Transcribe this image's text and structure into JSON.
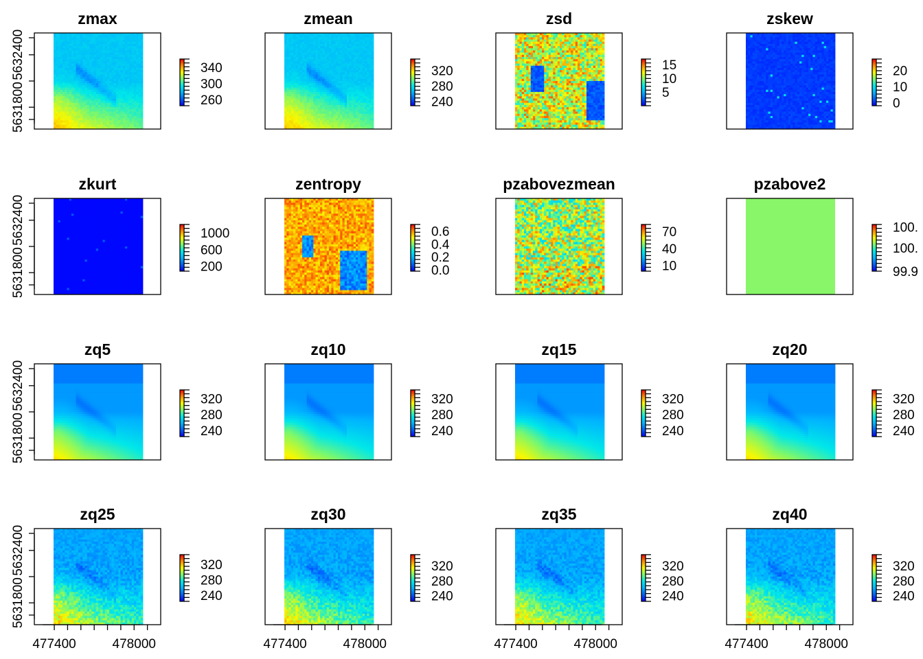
{
  "chart_data": [
    {
      "type": "heatmap",
      "title": "zmax",
      "legend_ticks": [
        "260",
        "300",
        "340"
      ],
      "legend_range": [
        245,
        360
      ],
      "pattern": "terrain",
      "y_axis_ticks": [
        "5631800",
        "5632400"
      ],
      "x_axis_ticks": [],
      "xlim": [
        477250,
        478200
      ],
      "ylim": [
        5631550,
        5632650
      ]
    },
    {
      "type": "heatmap",
      "title": "zmean",
      "legend_ticks": [
        "240",
        "280",
        "320"
      ],
      "legend_range": [
        228,
        350
      ],
      "pattern": "terrain",
      "y_axis_ticks": [],
      "x_axis_ticks": [],
      "xlim": [
        477250,
        478200
      ],
      "ylim": [
        5631550,
        5632650
      ]
    },
    {
      "type": "heatmap",
      "title": "zsd",
      "legend_ticks": [
        "5",
        "10",
        "15"
      ],
      "legend_range": [
        0,
        17
      ],
      "pattern": "zsd",
      "y_axis_ticks": [],
      "x_axis_ticks": [],
      "xlim": [
        477250,
        478200
      ],
      "ylim": [
        5631550,
        5632650
      ]
    },
    {
      "type": "heatmap",
      "title": "zskew",
      "legend_ticks": [
        "0",
        "10",
        "20"
      ],
      "legend_range": [
        -2,
        27
      ],
      "pattern": "skew",
      "y_axis_ticks": [],
      "x_axis_ticks": [],
      "xlim": [
        477250,
        478200
      ],
      "ylim": [
        5631550,
        5632650
      ]
    },
    {
      "type": "heatmap",
      "title": "zkurt",
      "legend_ticks": [
        "200",
        "600",
        "1000"
      ],
      "legend_range": [
        80,
        1200
      ],
      "pattern": "kurt",
      "y_axis_ticks": [
        "5631800",
        "5632400"
      ],
      "x_axis_ticks": [],
      "xlim": [
        477250,
        478200
      ],
      "ylim": [
        5631550,
        5632650
      ]
    },
    {
      "type": "heatmap",
      "title": "zentropy",
      "legend_ticks": [
        "0.0",
        "0.2",
        "0.4",
        "0.6"
      ],
      "legend_range": [
        -0.02,
        0.7
      ],
      "pattern": "entropy",
      "y_axis_ticks": [],
      "x_axis_ticks": [],
      "xlim": [
        477250,
        478200
      ],
      "ylim": [
        5631550,
        5632650
      ]
    },
    {
      "type": "heatmap",
      "title": "pzabovezmean",
      "legend_ticks": [
        "10",
        "40",
        "70"
      ],
      "legend_range": [
        0,
        82
      ],
      "pattern": "pzabove",
      "y_axis_ticks": [],
      "x_axis_ticks": [],
      "xlim": [
        477250,
        478200
      ],
      "ylim": [
        5631550,
        5632650
      ]
    },
    {
      "type": "heatmap",
      "title": "pzabove2",
      "legend_ticks": [
        "99.9",
        "100.",
        "100."
      ],
      "legend_range": [
        99.9,
        100.1
      ],
      "pattern": "flat",
      "y_axis_ticks": [],
      "x_axis_ticks": [],
      "xlim": [
        477250,
        478200
      ],
      "ylim": [
        5631550,
        5632650
      ]
    },
    {
      "type": "heatmap",
      "title": "zq5",
      "legend_ticks": [
        "240",
        "280",
        "320"
      ],
      "legend_range": [
        224,
        342
      ],
      "pattern": "smooth",
      "y_axis_ticks": [
        "5631800",
        "5632400"
      ],
      "x_axis_ticks": [],
      "xlim": [
        477250,
        478200
      ],
      "ylim": [
        5631550,
        5632650
      ]
    },
    {
      "type": "heatmap",
      "title": "zq10",
      "legend_ticks": [
        "240",
        "280",
        "320"
      ],
      "legend_range": [
        224,
        342
      ],
      "pattern": "smooth",
      "y_axis_ticks": [],
      "x_axis_ticks": [],
      "xlim": [
        477250,
        478200
      ],
      "ylim": [
        5631550,
        5632650
      ]
    },
    {
      "type": "heatmap",
      "title": "zq15",
      "legend_ticks": [
        "240",
        "280",
        "320"
      ],
      "legend_range": [
        224,
        342
      ],
      "pattern": "smooth",
      "y_axis_ticks": [],
      "x_axis_ticks": [],
      "xlim": [
        477250,
        478200
      ],
      "ylim": [
        5631550,
        5632650
      ]
    },
    {
      "type": "heatmap",
      "title": "zq20",
      "legend_ticks": [
        "240",
        "280",
        "320"
      ],
      "legend_range": [
        224,
        342
      ],
      "pattern": "smooth",
      "y_axis_ticks": [],
      "x_axis_ticks": [],
      "xlim": [
        477250,
        478200
      ],
      "ylim": [
        5631550,
        5632650
      ]
    },
    {
      "type": "heatmap",
      "title": "zq25",
      "legend_ticks": [
        "240",
        "280",
        "320"
      ],
      "legend_range": [
        224,
        345
      ],
      "pattern": "quant",
      "y_axis_ticks": [
        "5631800",
        "5632400"
      ],
      "x_axis_ticks": [
        "477400",
        "478000"
      ],
      "xlim": [
        477250,
        478200
      ],
      "ylim": [
        5631550,
        5632650
      ]
    },
    {
      "type": "heatmap",
      "title": "zq30",
      "legend_ticks": [
        "240",
        "280",
        "320"
      ],
      "legend_range": [
        224,
        350
      ],
      "pattern": "quant",
      "y_axis_ticks": [],
      "x_axis_ticks": [
        "477400",
        "478000"
      ],
      "xlim": [
        477250,
        478200
      ],
      "ylim": [
        5631550,
        5632650
      ]
    },
    {
      "type": "heatmap",
      "title": "zq35",
      "legend_ticks": [
        "240",
        "280",
        "320"
      ],
      "legend_range": [
        224,
        350
      ],
      "pattern": "quant",
      "y_axis_ticks": [],
      "x_axis_ticks": [
        "477400",
        "478000"
      ],
      "xlim": [
        477250,
        478200
      ],
      "ylim": [
        5631550,
        5632650
      ]
    },
    {
      "type": "heatmap",
      "title": "zq40",
      "legend_ticks": [
        "240",
        "280",
        "320"
      ],
      "legend_range": [
        224,
        350
      ],
      "pattern": "quant",
      "y_axis_ticks": [],
      "x_axis_ticks": [
        "477400",
        "478000"
      ],
      "xlim": [
        477250,
        478200
      ],
      "ylim": [
        5631550,
        5632650
      ]
    }
  ],
  "colors": {
    "frame": "#000000",
    "flat_fill": "#88F668",
    "colormap": [
      "#0000FF",
      "#0060FF",
      "#00B4FF",
      "#00E8E8",
      "#7CF86C",
      "#F8F800",
      "#FF8C00",
      "#F00000"
    ]
  }
}
